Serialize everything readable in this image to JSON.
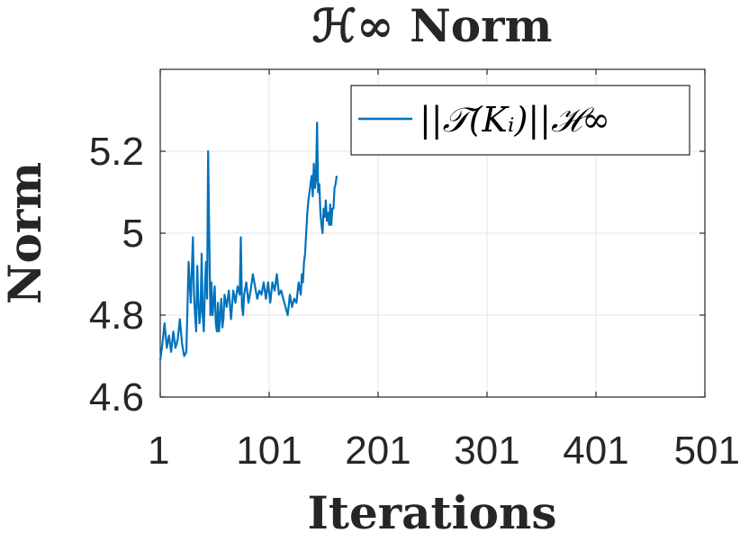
{
  "chart_data": {
    "type": "line",
    "title": "ℋ∞ Norm",
    "xlabel": "Iterations",
    "ylabel": "Norm",
    "xlim": [
      1,
      501
    ],
    "ylim": [
      4.6,
      5.4
    ],
    "xticks": [
      1,
      101,
      201,
      301,
      401,
      501
    ],
    "xtick_labels": [
      "1",
      "101",
      "201",
      "301",
      "401",
      "501"
    ],
    "yticks": [
      4.6,
      4.8,
      5.0,
      5.2
    ],
    "ytick_labels": [
      "4.6",
      "4.8",
      "5",
      "5.2"
    ],
    "grid": true,
    "legend_position": "top-right",
    "colors": {
      "series": "#0072BD",
      "grid": "#e6e6e6",
      "axis": "#262626"
    },
    "series": [
      {
        "name": "||𝒯(Kᵢ)||ℋ∞",
        "x": [
          1,
          3,
          5,
          7,
          9,
          11,
          13,
          15,
          17,
          19,
          21,
          23,
          25,
          27,
          29,
          31,
          32,
          33,
          34,
          35,
          36,
          37,
          38,
          39,
          40,
          41,
          42,
          43,
          44,
          45,
          46,
          47,
          48,
          49,
          50,
          51,
          52,
          53,
          54,
          55,
          56,
          57,
          58,
          59,
          60,
          62,
          64,
          66,
          68,
          70,
          72,
          74,
          75,
          76,
          77,
          78,
          80,
          82,
          84,
          86,
          88,
          90,
          92,
          94,
          96,
          98,
          100,
          102,
          104,
          106,
          108,
          110,
          112,
          114,
          116,
          118,
          120,
          122,
          124,
          126,
          128,
          130,
          131,
          132,
          133,
          134,
          135,
          136,
          137,
          138,
          139,
          140,
          141,
          142,
          143,
          144,
          145,
          146,
          147,
          148,
          149,
          150,
          151,
          152,
          153,
          154,
          155,
          156,
          157,
          158,
          159,
          160,
          161,
          162,
          163
        ],
        "values": [
          4.69,
          4.73,
          4.78,
          4.72,
          4.75,
          4.71,
          4.76,
          4.72,
          4.74,
          4.79,
          4.73,
          4.7,
          4.71,
          4.93,
          4.83,
          4.99,
          4.85,
          4.8,
          4.76,
          4.92,
          4.84,
          4.78,
          4.81,
          4.95,
          4.8,
          4.76,
          4.86,
          4.93,
          4.84,
          5.2,
          5.0,
          4.8,
          4.88,
          4.8,
          4.83,
          4.87,
          4.78,
          4.76,
          4.83,
          4.76,
          4.8,
          4.84,
          4.77,
          4.79,
          4.85,
          4.82,
          4.86,
          4.79,
          4.86,
          4.83,
          4.87,
          4.85,
          4.99,
          4.82,
          4.8,
          4.85,
          4.88,
          4.83,
          4.86,
          4.9,
          4.87,
          4.84,
          4.86,
          4.85,
          4.88,
          4.84,
          4.88,
          4.83,
          4.88,
          4.86,
          4.9,
          4.85,
          4.86,
          4.84,
          4.82,
          4.8,
          4.85,
          4.82,
          4.84,
          4.83,
          4.88,
          4.85,
          4.9,
          4.88,
          4.93,
          4.95,
          5.0,
          5.05,
          5.08,
          5.1,
          5.12,
          5.14,
          5.09,
          5.17,
          5.11,
          5.13,
          5.27,
          5.1,
          5.12,
          5.05,
          5.02,
          5.0,
          5.06,
          5.04,
          5.08,
          5.03,
          5.05,
          5.02,
          5.07,
          5.02,
          5.06,
          5.06,
          5.11,
          5.12,
          5.14
        ]
      }
    ]
  }
}
